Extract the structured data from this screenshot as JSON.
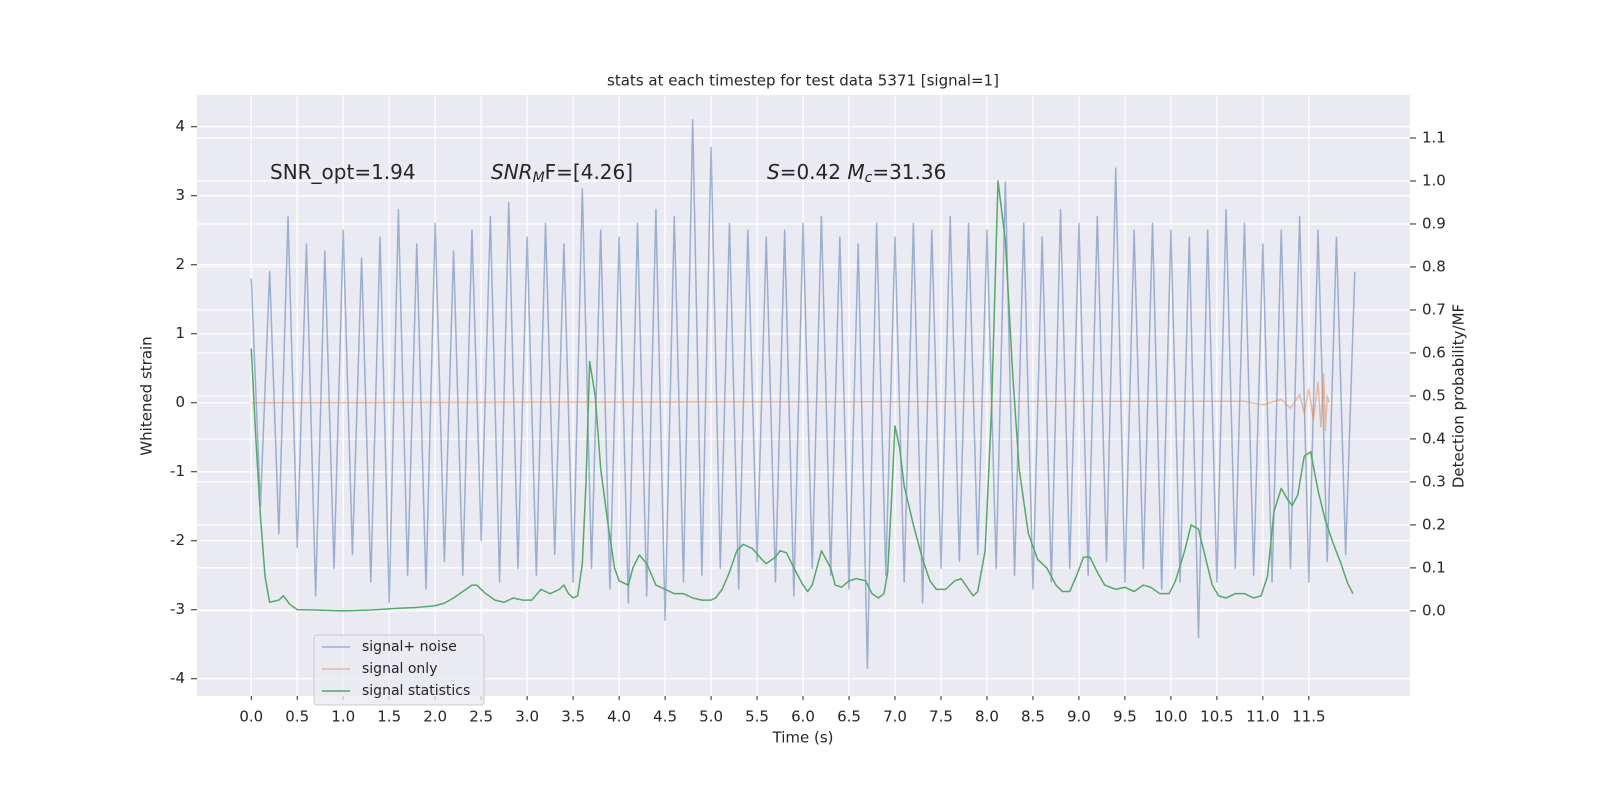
{
  "chart_data": {
    "type": "line",
    "title": "stats at each timestep for test data 5371 [signal=1]",
    "x_label": "Time (s)",
    "y_label": "Whitened strain",
    "y2_label": "Detection probability/MF",
    "annotations": [
      [
        {
          "text": "SNR_opt=1.94",
          "style": "normal"
        }
      ],
      [
        {
          "text": "SNR",
          "style": "italic"
        },
        {
          "text": "M",
          "style": "sub"
        },
        {
          "text": "F=[4.26]",
          "style": "normal"
        }
      ],
      [
        {
          "text": "S",
          "style": "italic"
        },
        {
          "text": "=0.42   ",
          "style": "normal"
        },
        {
          "text": "M",
          "style": "italic"
        },
        {
          "text": "c",
          "style": "sub"
        },
        {
          "text": "=31.36",
          "style": "normal"
        }
      ]
    ],
    "xlim": [
      -0.59,
      12.6
    ],
    "ylim": [
      -4.25,
      4.46
    ],
    "y2lim": [
      -0.198,
      1.2
    ],
    "xticks": [
      {
        "value": 0,
        "label": "0.0"
      },
      0.5,
      {
        "value": 1,
        "label": "1.0"
      },
      1.5,
      {
        "value": 2,
        "label": "2.0"
      },
      2.5,
      {
        "value": 3,
        "label": "3.0"
      },
      3.5,
      {
        "value": 4,
        "label": "4.0"
      },
      4.5,
      {
        "value": 5,
        "label": "5.0"
      },
      5.5,
      {
        "value": 6,
        "label": "6.0"
      },
      6.5,
      {
        "value": 7,
        "label": "7.0"
      },
      7.5,
      {
        "value": 8,
        "label": "8.0"
      },
      8.5,
      {
        "value": 9,
        "label": "9.0"
      },
      9.5,
      {
        "value": 10,
        "label": "10.0"
      },
      10.5,
      {
        "value": 11,
        "label": "11.0"
      },
      11.5
    ],
    "yticks": [
      -4,
      -3,
      -2,
      -1,
      0,
      1,
      2,
      3,
      4
    ],
    "y2ticks": [
      {
        "value": 0,
        "label": "0.0"
      },
      0.1,
      0.2,
      0.3,
      0.4,
      0.5,
      0.6,
      0.7,
      0.8,
      0.9,
      {
        "value": 1,
        "label": "1.0"
      },
      1.1
    ],
    "grid": true,
    "legend": "lower left",
    "series": [
      {
        "name": "signal+ noise",
        "color": "#4c72b0",
        "opacity": 0.5,
        "x": [
          0,
          0.1,
          0.2,
          0.3,
          0.4,
          0.5,
          0.6,
          0.7,
          0.8,
          0.9,
          1,
          1.1,
          1.2,
          1.3,
          1.4,
          1.5,
          1.6,
          1.7,
          1.8,
          1.9,
          2,
          2.1,
          2.2,
          2.3,
          2.4,
          2.5,
          2.6,
          2.7,
          2.8,
          2.9,
          3,
          3.1,
          3.2,
          3.3,
          3.4,
          3.5,
          3.6,
          3.7,
          3.8,
          3.9,
          4,
          4.1,
          4.2,
          4.3,
          4.4,
          4.5,
          4.6,
          4.7,
          4.8,
          4.9,
          5,
          5.1,
          5.2,
          5.3,
          5.4,
          5.5,
          5.6,
          5.7,
          5.8,
          5.9,
          6,
          6.1,
          6.2,
          6.3,
          6.4,
          6.5,
          6.6,
          6.7,
          6.8,
          6.9,
          7,
          7.1,
          7.2,
          7.3,
          7.4,
          7.5,
          7.6,
          7.7,
          7.8,
          7.9,
          8,
          8.1,
          8.2,
          8.3,
          8.4,
          8.5,
          8.6,
          8.7,
          8.8,
          8.9,
          9,
          9.1,
          9.2,
          9.3,
          9.4,
          9.5,
          9.6,
          9.7,
          9.8,
          9.9,
          10,
          10.1,
          10.2,
          10.3,
          10.4,
          10.5,
          10.6,
          10.7,
          10.8,
          10.9,
          11,
          11.1,
          11.2,
          11.3,
          11.4,
          11.5,
          11.6,
          11.7,
          11.8,
          11.9,
          12
        ],
        "values": [
          1.8,
          -1.5,
          1.9,
          -1.9,
          2.7,
          -2.1,
          2.3,
          -2.8,
          2.2,
          -2.4,
          2.5,
          -2.2,
          2.1,
          -2.6,
          2.4,
          -2.9,
          2.8,
          -2.5,
          2.3,
          -2.7,
          2.6,
          -2.3,
          2.2,
          -2.5,
          2.5,
          -2.0,
          2.7,
          -2.6,
          2.9,
          -2.4,
          2.4,
          -2.5,
          2.6,
          -2.2,
          2.3,
          -2.6,
          3.1,
          -2.4,
          2.5,
          -2.7,
          2.4,
          -2.9,
          2.6,
          -2.8,
          2.8,
          -3.15,
          2.7,
          -2.6,
          4.1,
          -2.5,
          3.7,
          -2.4,
          2.6,
          -2.7,
          2.5,
          -2.3,
          2.4,
          -2.6,
          2.5,
          -2.8,
          2.6,
          -2.4,
          2.7,
          -2.5,
          2.4,
          -2.7,
          2.3,
          -3.85,
          2.6,
          -2.5,
          2.4,
          -2.6,
          2.6,
          -2.9,
          2.5,
          -2.4,
          2.7,
          -2.3,
          2.6,
          -2.2,
          2.5,
          -2.4,
          3.2,
          -2.5,
          2.6,
          -2.7,
          2.4,
          -2.6,
          2.8,
          -2.4,
          2.6,
          -2.5,
          2.7,
          -2.3,
          3.4,
          -2.6,
          2.5,
          -2.4,
          2.6,
          -2.7,
          2.5,
          -2.6,
          2.4,
          -3.4,
          2.5,
          -2.6,
          2.8,
          -2.4,
          2.6,
          -2.5,
          2.3,
          -2.6,
          2.5,
          -2.4,
          2.7,
          -2.6,
          2.5,
          -2.3,
          2.4,
          -2.2,
          1.9
        ]
      },
      {
        "name": "signal only",
        "color": "#dd8452",
        "opacity": 0.5,
        "x": [
          0,
          10.8,
          11.0,
          11.2,
          11.3,
          11.4,
          11.45,
          11.5,
          11.55,
          11.6,
          11.63,
          11.66,
          11.68,
          11.7,
          11.72
        ],
        "values": [
          0,
          0.02,
          -0.03,
          0.05,
          -0.08,
          0.12,
          -0.15,
          0.2,
          -0.25,
          0.3,
          -0.35,
          0.42,
          -0.4,
          0.1,
          0
        ]
      },
      {
        "name": "signal statistics",
        "color": "#55a868",
        "opacity": 1,
        "axis": "y2",
        "x": [
          0,
          0.05,
          0.1,
          0.15,
          0.2,
          0.3,
          0.35,
          0.42,
          0.5,
          0.7,
          1.0,
          1.3,
          1.6,
          1.8,
          2.0,
          2.1,
          2.2,
          2.3,
          2.4,
          2.45,
          2.55,
          2.65,
          2.75,
          2.85,
          2.95,
          3.05,
          3.15,
          3.25,
          3.35,
          3.4,
          3.45,
          3.5,
          3.55,
          3.6,
          3.64,
          3.68,
          3.74,
          3.8,
          3.88,
          3.95,
          4.0,
          4.1,
          4.15,
          4.22,
          4.3,
          4.4,
          4.5,
          4.6,
          4.7,
          4.8,
          4.9,
          5.0,
          5.05,
          5.12,
          5.2,
          5.28,
          5.35,
          5.45,
          5.55,
          5.6,
          5.7,
          5.75,
          5.82,
          5.9,
          6.0,
          6.05,
          6.1,
          6.15,
          6.2,
          6.3,
          6.35,
          6.42,
          6.5,
          6.58,
          6.68,
          6.75,
          6.82,
          6.88,
          6.92,
          6.96,
          7.0,
          7.05,
          7.1,
          7.2,
          7.3,
          7.38,
          7.45,
          7.55,
          7.65,
          7.72,
          7.8,
          7.85,
          7.9,
          7.98,
          8.05,
          8.12,
          8.2,
          8.28,
          8.35,
          8.45,
          8.55,
          8.65,
          8.75,
          8.82,
          8.9,
          8.98,
          9.05,
          9.12,
          9.2,
          9.28,
          9.4,
          9.5,
          9.6,
          9.7,
          9.78,
          9.88,
          9.98,
          10.05,
          10.15,
          10.22,
          10.3,
          10.38,
          10.45,
          10.52,
          10.6,
          10.7,
          10.8,
          10.9,
          10.98,
          11.05,
          11.12,
          11.2,
          11.28,
          11.32,
          11.38,
          11.45,
          11.52,
          11.6,
          11.68,
          11.76,
          11.85,
          11.92,
          11.98
        ],
        "values": [
          0.61,
          0.4,
          0.22,
          0.08,
          0.02,
          0.025,
          0.035,
          0.015,
          0.003,
          0.002,
          0,
          0.002,
          0.006,
          0.008,
          0.012,
          0.018,
          0.03,
          0.045,
          0.06,
          0.06,
          0.04,
          0.025,
          0.02,
          0.03,
          0.025,
          0.025,
          0.05,
          0.04,
          0.05,
          0.06,
          0.04,
          0.03,
          0.035,
          0.11,
          0.3,
          0.58,
          0.5,
          0.33,
          0.2,
          0.1,
          0.07,
          0.06,
          0.1,
          0.13,
          0.11,
          0.06,
          0.05,
          0.04,
          0.04,
          0.03,
          0.025,
          0.025,
          0.03,
          0.05,
          0.09,
          0.14,
          0.155,
          0.145,
          0.12,
          0.11,
          0.125,
          0.14,
          0.135,
          0.1,
          0.06,
          0.045,
          0.06,
          0.1,
          0.14,
          0.1,
          0.06,
          0.055,
          0.07,
          0.075,
          0.07,
          0.04,
          0.03,
          0.04,
          0.09,
          0.25,
          0.43,
          0.38,
          0.29,
          0.2,
          0.12,
          0.07,
          0.05,
          0.05,
          0.07,
          0.075,
          0.05,
          0.035,
          0.045,
          0.14,
          0.47,
          1.0,
          0.86,
          0.55,
          0.33,
          0.18,
          0.12,
          0.1,
          0.06,
          0.045,
          0.045,
          0.085,
          0.125,
          0.125,
          0.09,
          0.06,
          0.05,
          0.055,
          0.045,
          0.06,
          0.055,
          0.04,
          0.04,
          0.07,
          0.14,
          0.2,
          0.19,
          0.12,
          0.06,
          0.035,
          0.03,
          0.04,
          0.04,
          0.03,
          0.035,
          0.08,
          0.23,
          0.285,
          0.255,
          0.245,
          0.27,
          0.36,
          0.37,
          0.28,
          0.21,
          0.16,
          0.11,
          0.065,
          0.04
        ]
      }
    ]
  }
}
